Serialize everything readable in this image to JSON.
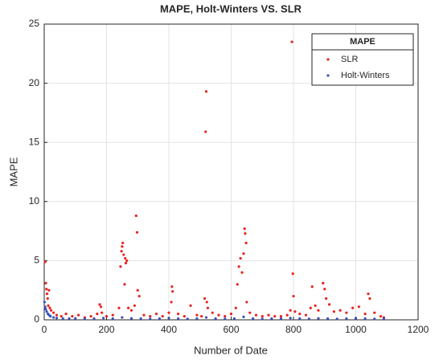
{
  "chart_data": {
    "type": "scatter",
    "title": "MAPE, Holt-Winters VS. SLR",
    "xlabel": "Number of Date",
    "ylabel": "MAPE",
    "xlim": [
      0,
      1200
    ],
    "ylim": [
      0,
      25
    ],
    "xticks": [
      0,
      200,
      400,
      600,
      800,
      1000,
      1200
    ],
    "yticks": [
      0,
      5,
      10,
      15,
      20,
      25
    ],
    "grid": true,
    "legend_title": "MAPE",
    "legend_position": "northeast",
    "series": [
      {
        "name": "SLR",
        "color": "#e8231f",
        "x": [
          3,
          5,
          7,
          9,
          11,
          13,
          15,
          18,
          22,
          30,
          40,
          55,
          70,
          90,
          110,
          130,
          150,
          170,
          178,
          182,
          185,
          200,
          220,
          240,
          245,
          248,
          250,
          252,
          255,
          258,
          260,
          262,
          265,
          270,
          280,
          290,
          295,
          298,
          300,
          305,
          320,
          340,
          360,
          380,
          400,
          408,
          410,
          412,
          430,
          450,
          470,
          490,
          505,
          515,
          518,
          520,
          522,
          525,
          540,
          560,
          580,
          600,
          615,
          620,
          625,
          630,
          635,
          640,
          643,
          645,
          648,
          650,
          660,
          680,
          700,
          720,
          740,
          760,
          780,
          790,
          795,
          798,
          800,
          805,
          820,
          840,
          855,
          860,
          870,
          880,
          895,
          900,
          905,
          915,
          930,
          950,
          970,
          990,
          1010,
          1030,
          1040,
          1045,
          1060,
          1080,
          1090
        ],
        "values": [
          4.9,
          3.1,
          2.6,
          2.2,
          1.8,
          1.2,
          2.5,
          1.0,
          0.8,
          0.6,
          0.4,
          0.3,
          0.5,
          0.3,
          0.4,
          0.2,
          0.3,
          0.5,
          1.3,
          1.1,
          0.6,
          0.3,
          0.4,
          1.0,
          4.5,
          5.8,
          6.2,
          6.5,
          5.5,
          3.0,
          5.2,
          4.8,
          5.0,
          1.0,
          0.8,
          1.2,
          8.8,
          7.4,
          2.5,
          2.0,
          0.4,
          0.3,
          0.5,
          0.3,
          0.6,
          1.5,
          2.8,
          2.4,
          0.5,
          0.3,
          1.2,
          0.4,
          0.3,
          1.8,
          15.9,
          19.3,
          1.5,
          1.0,
          0.6,
          0.4,
          0.3,
          0.5,
          1.0,
          3.0,
          4.5,
          5.2,
          4.0,
          5.6,
          7.7,
          7.3,
          6.5,
          1.5,
          0.6,
          0.4,
          0.3,
          0.4,
          0.3,
          0.3,
          0.4,
          0.8,
          23.5,
          3.9,
          2.0,
          0.7,
          0.5,
          0.4,
          1.0,
          2.8,
          1.2,
          0.8,
          3.1,
          2.6,
          1.8,
          1.3,
          0.7,
          0.8,
          0.6,
          1.0,
          1.1,
          0.5,
          2.2,
          1.8,
          0.6,
          0.3,
          0.2
        ]
      },
      {
        "name": "Holt-Winters",
        "color": "#3a4fb8",
        "x": [
          1,
          3,
          5,
          8,
          12,
          16,
          20,
          30,
          40,
          60,
          80,
          100,
          130,
          160,
          190,
          220,
          250,
          280,
          310,
          340,
          370,
          400,
          430,
          460,
          490,
          520,
          550,
          580,
          610,
          640,
          670,
          700,
          730,
          760,
          790,
          820,
          850,
          880,
          910,
          940,
          970,
          1000,
          1030,
          1060,
          1090
        ],
        "values": [
          1.5,
          1.1,
          0.9,
          0.7,
          0.5,
          0.4,
          0.3,
          0.2,
          0.15,
          0.1,
          0.1,
          0.12,
          0.08,
          0.1,
          0.15,
          0.1,
          0.2,
          0.12,
          0.1,
          0.08,
          0.1,
          0.15,
          0.1,
          0.08,
          0.1,
          0.2,
          0.1,
          0.08,
          0.1,
          0.25,
          0.1,
          0.08,
          0.1,
          0.1,
          0.15,
          0.1,
          0.08,
          0.12,
          0.1,
          0.08,
          0.1,
          0.12,
          0.1,
          0.08,
          0.1
        ]
      }
    ]
  }
}
